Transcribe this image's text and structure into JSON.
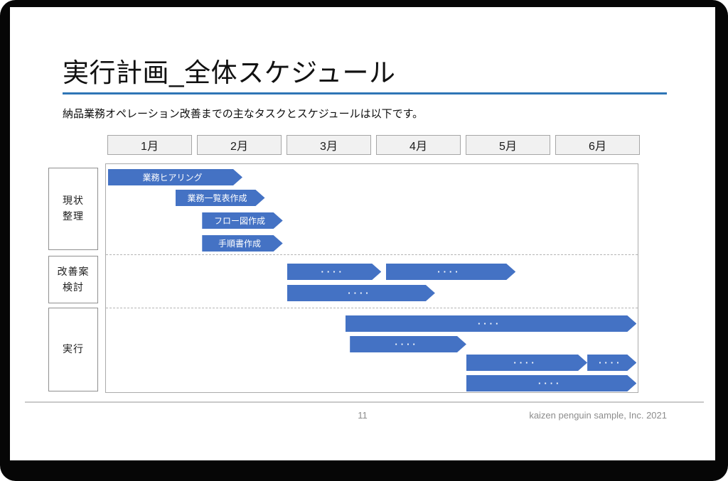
{
  "slide": {
    "title": "実行計画_全体スケジュール",
    "subtitle": "納品業務オペレーション改善までの主なタスクとスケジュールは以下です。",
    "footer": {
      "page_number": "11",
      "credit": "kaizen penguin sample, Inc. 2021"
    }
  },
  "colors": {
    "task_fill": "#4472C4",
    "title_rule": "#2E75B6",
    "month_box_bg": "#F1F1F1",
    "month_box_border": "#A6A6A6",
    "plot_border": "#ABABAB",
    "dashed_separator": "#B5B5B5",
    "footer_text": "#8C8C8C"
  },
  "chart_data": {
    "type": "gantt",
    "title": "実行計画_全体スケジュール",
    "x_axis": {
      "unit": "month",
      "tick_labels": [
        "1月",
        "2月",
        "3月",
        "4月",
        "5月",
        "6月"
      ],
      "range": [
        0,
        6
      ],
      "grid": false
    },
    "legend": "none",
    "rows": [
      {
        "label": "現状整理",
        "label_lines": [
          "現状",
          "整理"
        ],
        "tasks": [
          {
            "label": "業務ヒアリング",
            "start": 0.0,
            "end": 1.5,
            "lane": 0
          },
          {
            "label": "業務一覧表作成",
            "start": 0.75,
            "end": 1.75,
            "lane": 1
          },
          {
            "label": "フロー図作成",
            "start": 1.05,
            "end": 1.95,
            "lane": 2
          },
          {
            "label": "手順書作成",
            "start": 1.05,
            "end": 1.95,
            "lane": 3
          }
        ]
      },
      {
        "label": "改善案検討",
        "label_lines": [
          "改善案",
          "検討"
        ],
        "tasks": [
          {
            "label": "····",
            "start": 2.0,
            "end": 3.05,
            "lane": 0
          },
          {
            "label": "····",
            "start": 3.1,
            "end": 4.55,
            "lane": 0
          },
          {
            "label": "····",
            "start": 2.0,
            "end": 3.65,
            "lane": 1
          }
        ]
      },
      {
        "label": "実行",
        "label_lines": [
          "実行"
        ],
        "tasks": [
          {
            "label": "····",
            "start": 2.65,
            "end": 5.9,
            "lane": 0
          },
          {
            "label": "····",
            "start": 2.7,
            "end": 4.0,
            "lane": 1
          },
          {
            "label": "····",
            "start": 4.0,
            "end": 5.35,
            "lane": 2
          },
          {
            "label": "····",
            "start": 5.35,
            "end": 5.9,
            "lane": 2
          },
          {
            "label": "····",
            "start": 4.0,
            "end": 5.9,
            "lane": 3
          }
        ]
      }
    ]
  }
}
